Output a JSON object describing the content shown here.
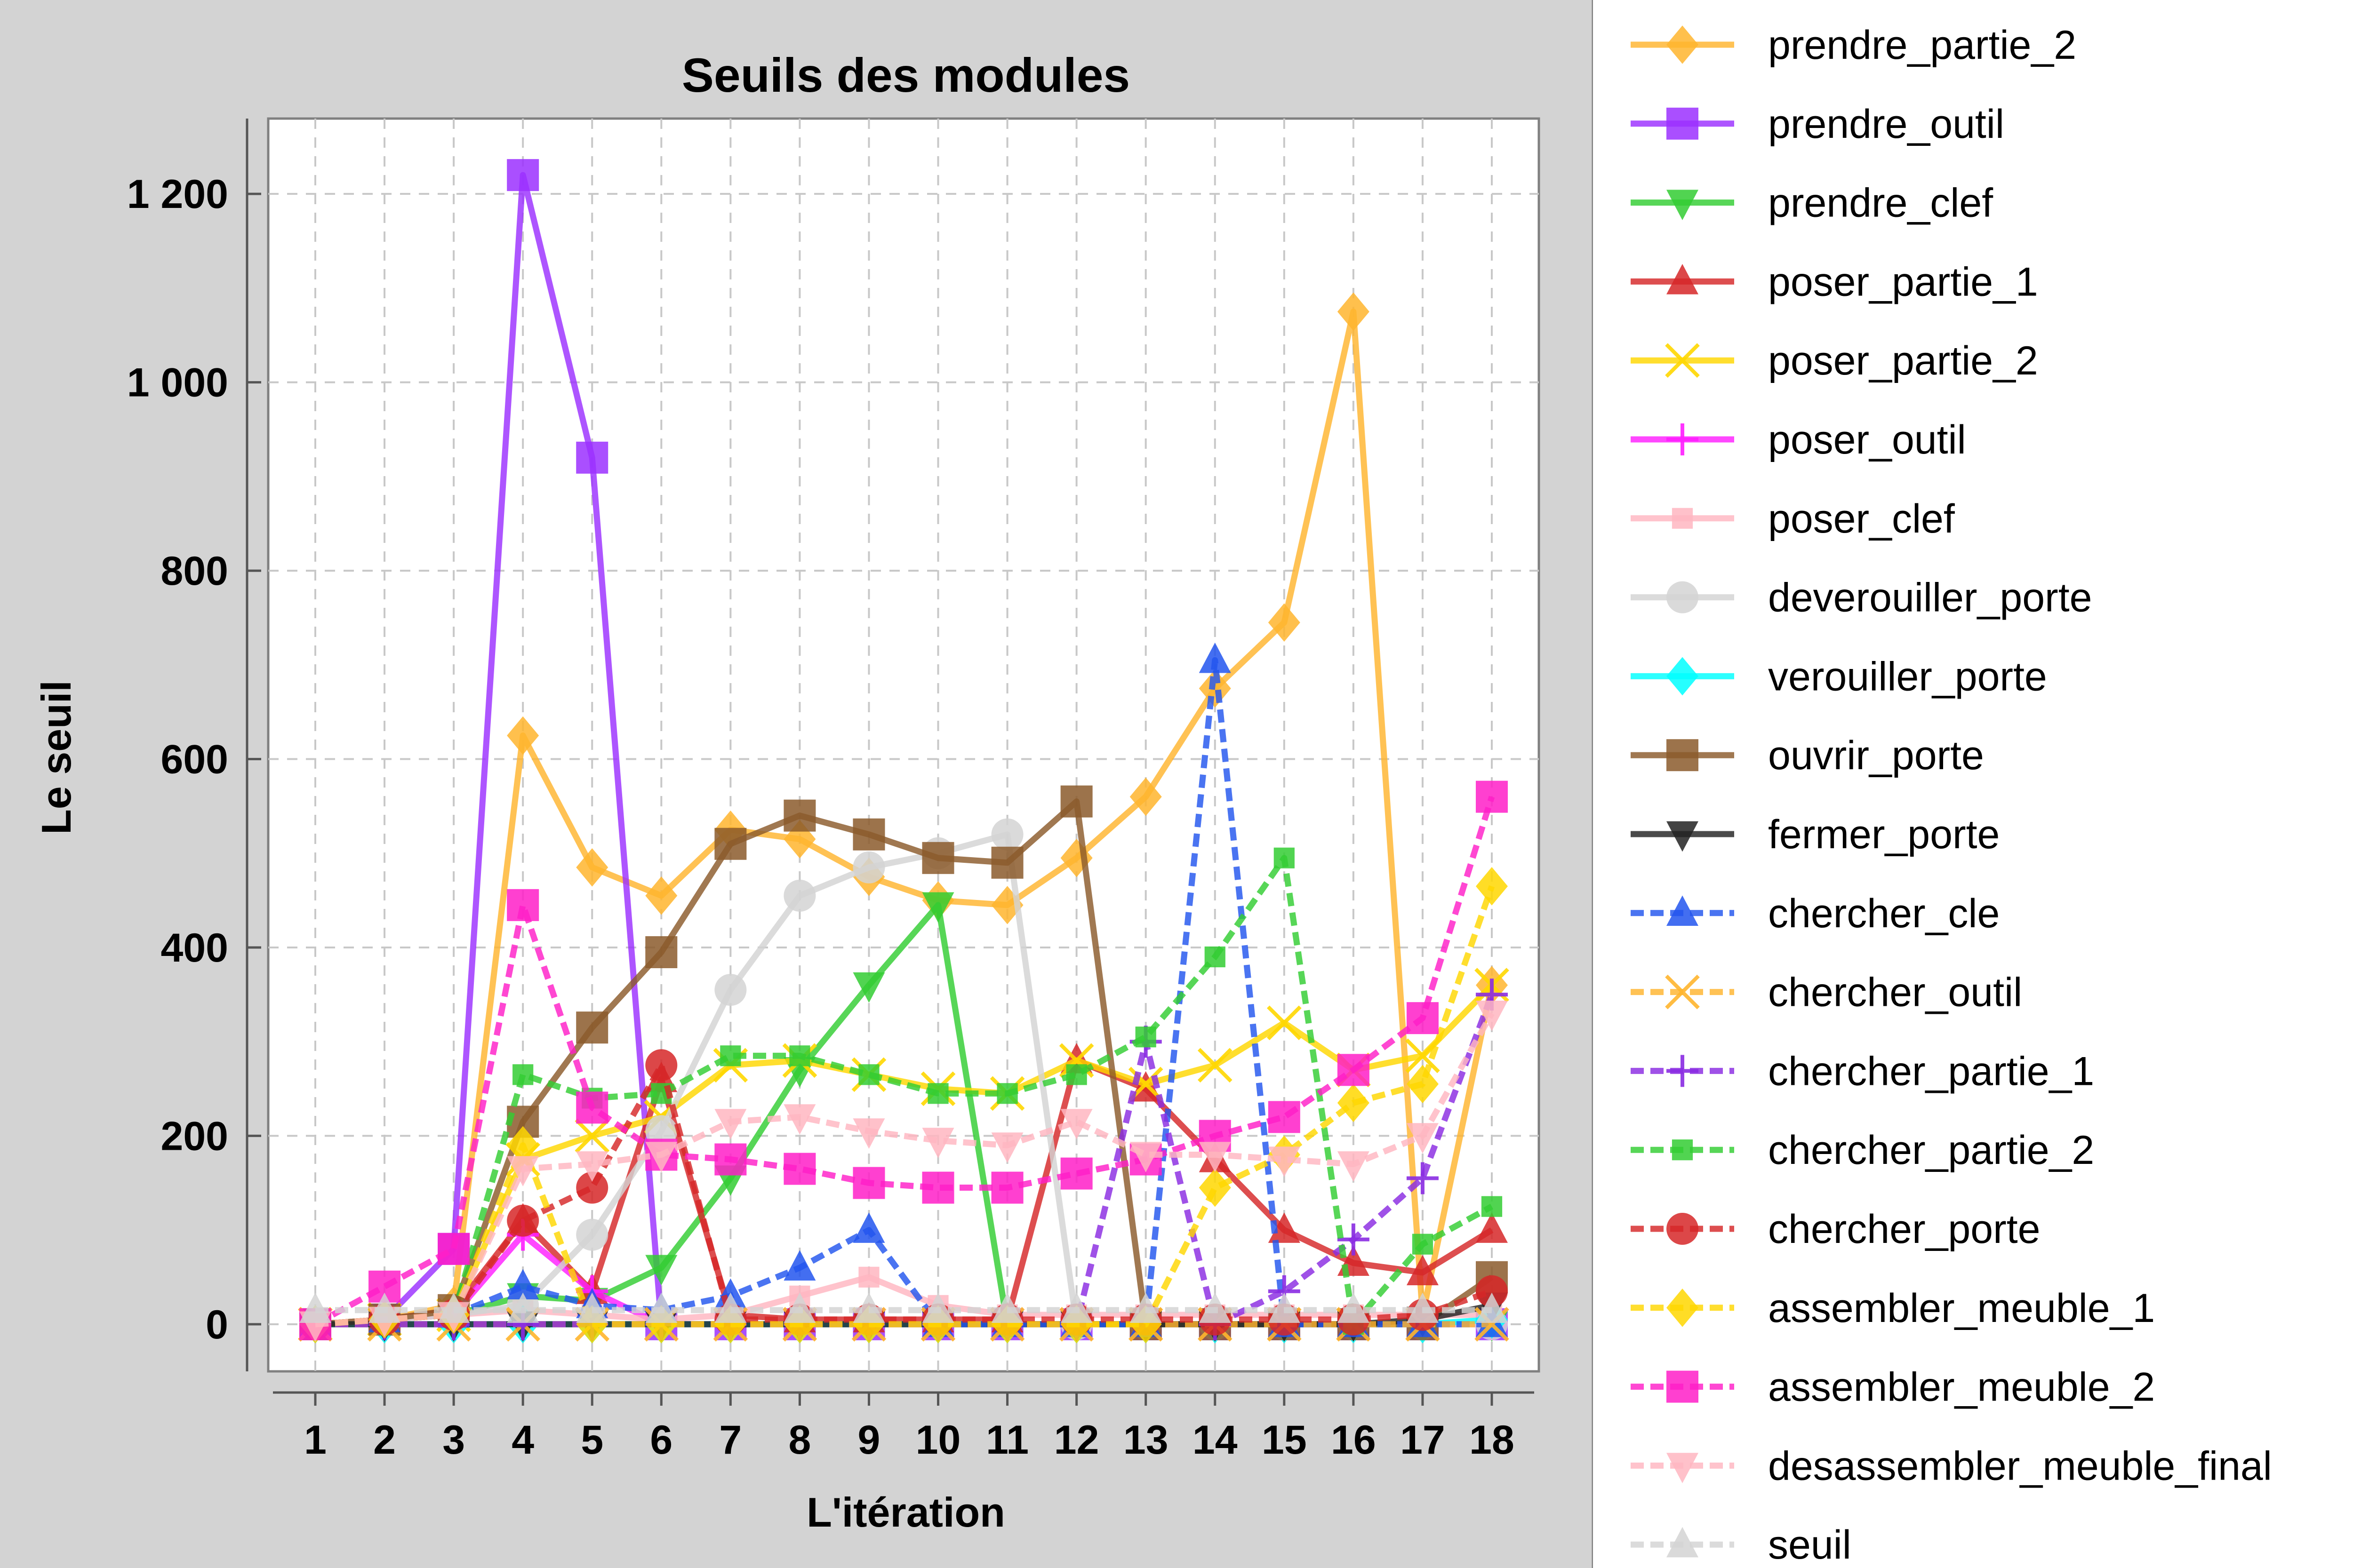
{
  "chart_data": {
    "type": "line",
    "title": "Seuils des modules",
    "xlabel": "L'itération",
    "ylabel": "Le seuil",
    "x": [
      1,
      2,
      3,
      4,
      5,
      6,
      7,
      8,
      9,
      10,
      11,
      12,
      13,
      14,
      15,
      16,
      17,
      18
    ],
    "ylim": [
      -50,
      1280
    ],
    "yticks": [
      0,
      200,
      400,
      600,
      800,
      1000,
      1200
    ],
    "ytick_labels": [
      "0",
      "200",
      "400",
      "600",
      "800",
      "1 000",
      "1 200"
    ],
    "grid": true,
    "legend_position": "right",
    "series": [
      {
        "name": "prendre_partie_2",
        "color": "#FFB52E",
        "style": "solid",
        "marker": "diamond",
        "values": [
          0,
          5,
          20,
          625,
          485,
          455,
          525,
          515,
          475,
          450,
          445,
          495,
          560,
          675,
          745,
          1075,
          10,
          360
        ]
      },
      {
        "name": "prendre_outil",
        "color": "#9B30FF",
        "style": "solid",
        "marker": "square",
        "values": [
          0,
          5,
          80,
          1220,
          920,
          0,
          0,
          0,
          0,
          0,
          0,
          0,
          0,
          0,
          0,
          0,
          0,
          0
        ]
      },
      {
        "name": "prendre_clef",
        "color": "#32CD32",
        "style": "solid",
        "marker": "triangle-down",
        "values": [
          0,
          5,
          10,
          30,
          25,
          60,
          155,
          270,
          360,
          445,
          0,
          0,
          0,
          0,
          0,
          0,
          0,
          0
        ]
      },
      {
        "name": "poser_partie_1",
        "color": "#D62728",
        "style": "solid",
        "marker": "triangle-up",
        "values": [
          0,
          5,
          15,
          110,
          35,
          260,
          10,
          5,
          5,
          5,
          5,
          280,
          250,
          175,
          100,
          65,
          55,
          100
        ]
      },
      {
        "name": "poser_partie_2",
        "color": "#FFD700",
        "style": "solid",
        "marker": "x",
        "values": [
          0,
          5,
          10,
          175,
          200,
          220,
          275,
          280,
          265,
          250,
          245,
          280,
          255,
          275,
          320,
          270,
          285,
          360
        ]
      },
      {
        "name": "poser_outil",
        "color": "#FF1EFF",
        "style": "solid",
        "marker": "plus",
        "values": [
          0,
          5,
          10,
          95,
          35,
          0,
          0,
          0,
          0,
          0,
          0,
          0,
          0,
          0,
          0,
          0,
          0,
          0
        ]
      },
      {
        "name": "poser_clef",
        "color": "#FFB6C1",
        "style": "solid",
        "marker": "small-square",
        "values": [
          0,
          5,
          10,
          15,
          10,
          5,
          10,
          30,
          50,
          20,
          10,
          10,
          10,
          10,
          10,
          10,
          10,
          10
        ]
      },
      {
        "name": "deverouiller_porte",
        "color": "#D3D3D3",
        "style": "solid",
        "marker": "circle",
        "values": [
          0,
          5,
          10,
          20,
          95,
          205,
          355,
          455,
          485,
          500,
          520,
          0,
          0,
          0,
          0,
          0,
          0,
          0
        ]
      },
      {
        "name": "verouiller_porte",
        "color": "#00FFFF",
        "style": "solid",
        "marker": "diamond",
        "values": [
          0,
          0,
          0,
          0,
          0,
          0,
          0,
          0,
          0,
          0,
          0,
          0,
          0,
          0,
          0,
          0,
          0,
          5
        ]
      },
      {
        "name": "ouvrir_porte",
        "color": "#8B5A2B",
        "style": "solid",
        "marker": "square",
        "values": [
          0,
          5,
          15,
          215,
          315,
          395,
          510,
          540,
          520,
          495,
          490,
          555,
          0,
          0,
          0,
          0,
          0,
          50
        ]
      },
      {
        "name": "fermer_porte",
        "color": "#222222",
        "style": "solid",
        "marker": "triangle-down",
        "values": [
          0,
          0,
          0,
          0,
          0,
          0,
          0,
          0,
          0,
          0,
          0,
          0,
          0,
          0,
          0,
          0,
          5,
          20
        ]
      },
      {
        "name": "chercher_cle",
        "color": "#2255EE",
        "style": "dashed",
        "marker": "triangle-up",
        "values": [
          0,
          5,
          10,
          40,
          20,
          15,
          30,
          60,
          100,
          0,
          0,
          0,
          0,
          705,
          0,
          0,
          0,
          0
        ]
      },
      {
        "name": "chercher_outil",
        "color": "#FFB52E",
        "style": "dashed",
        "marker": "x",
        "values": [
          0,
          0,
          0,
          0,
          0,
          0,
          0,
          0,
          0,
          0,
          0,
          0,
          0,
          0,
          0,
          0,
          0,
          0
        ]
      },
      {
        "name": "chercher_partie_1",
        "color": "#8A2BE2",
        "style": "dashed",
        "marker": "plus",
        "values": [
          0,
          0,
          0,
          0,
          0,
          0,
          0,
          0,
          0,
          0,
          0,
          0,
          300,
          0,
          35,
          90,
          155,
          350
        ]
      },
      {
        "name": "chercher_partie_2",
        "color": "#32CD32",
        "style": "dashed",
        "marker": "small-square",
        "values": [
          0,
          5,
          10,
          265,
          240,
          245,
          285,
          285,
          265,
          245,
          245,
          265,
          305,
          390,
          495,
          0,
          85,
          125
        ]
      },
      {
        "name": "chercher_porte",
        "color": "#D62728",
        "style": "dashed",
        "marker": "circle",
        "values": [
          0,
          5,
          10,
          110,
          145,
          275,
          5,
          5,
          5,
          5,
          5,
          5,
          5,
          5,
          5,
          5,
          10,
          35
        ]
      },
      {
        "name": "assembler_meuble_1",
        "color": "#FFD700",
        "style": "dashed",
        "marker": "diamond",
        "values": [
          0,
          5,
          10,
          190,
          0,
          0,
          0,
          0,
          0,
          0,
          0,
          0,
          0,
          145,
          180,
          235,
          255,
          465
        ]
      },
      {
        "name": "assembler_meuble_2",
        "color": "#FF1EC8",
        "style": "dashed",
        "marker": "square",
        "values": [
          0,
          40,
          80,
          445,
          230,
          180,
          175,
          165,
          150,
          145,
          145,
          160,
          175,
          200,
          220,
          270,
          325,
          560
        ]
      },
      {
        "name": "desassembler_meuble_final",
        "color": "#FFB6C1",
        "style": "dashed",
        "marker": "triangle-down",
        "values": [
          0,
          5,
          10,
          165,
          170,
          180,
          215,
          220,
          205,
          195,
          190,
          215,
          180,
          180,
          175,
          170,
          200,
          330
        ]
      },
      {
        "name": "seuil",
        "color": "#D3D3D3",
        "style": "dashed",
        "marker": "triangle-up",
        "values": [
          15,
          15,
          15,
          15,
          15,
          15,
          15,
          15,
          15,
          15,
          15,
          15,
          15,
          15,
          15,
          15,
          15,
          15
        ]
      }
    ]
  }
}
